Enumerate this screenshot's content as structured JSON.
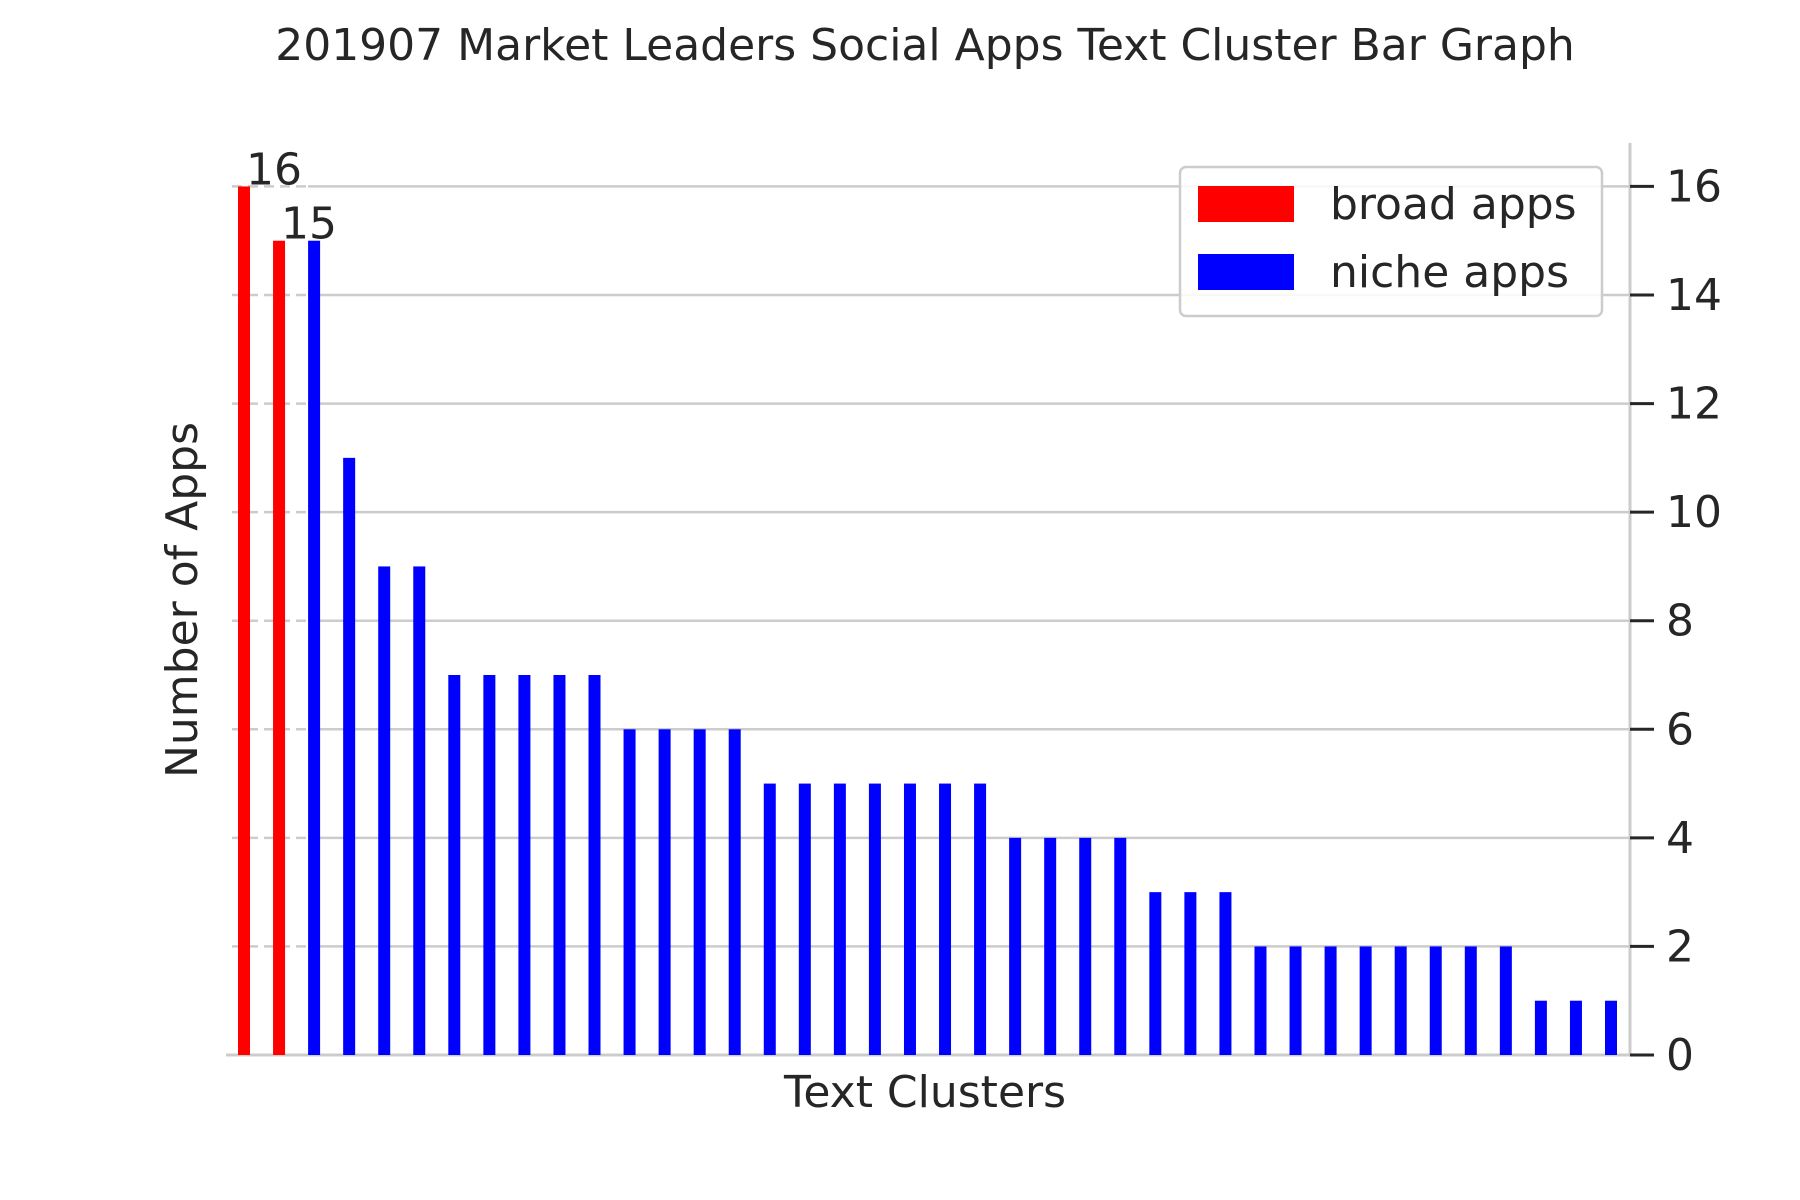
{
  "chart_data": {
    "type": "bar",
    "title": "201907 Market Leaders Social Apps Text Cluster Bar Graph",
    "xlabel": "Text Clusters",
    "ylabel": "Number of Apps",
    "ylim": [
      0,
      16.8
    ],
    "yticks": [
      0,
      2,
      4,
      6,
      8,
      10,
      12,
      14,
      16
    ],
    "grid": true,
    "y_axis_side": "right",
    "legend": {
      "placement": "top-right",
      "entries": [
        {
          "label": "broad apps",
          "color": "#ff0000"
        },
        {
          "label": "niche apps",
          "color": "#0000ff"
        }
      ]
    },
    "bars": [
      {
        "value": 16,
        "group": "broad apps",
        "label": "16"
      },
      {
        "value": 15,
        "group": "broad apps",
        "label": "15"
      },
      {
        "value": 15,
        "group": "niche apps"
      },
      {
        "value": 11,
        "group": "niche apps"
      },
      {
        "value": 9,
        "group": "niche apps"
      },
      {
        "value": 9,
        "group": "niche apps"
      },
      {
        "value": 7,
        "group": "niche apps"
      },
      {
        "value": 7,
        "group": "niche apps"
      },
      {
        "value": 7,
        "group": "niche apps"
      },
      {
        "value": 7,
        "group": "niche apps"
      },
      {
        "value": 7,
        "group": "niche apps"
      },
      {
        "value": 6,
        "group": "niche apps"
      },
      {
        "value": 6,
        "group": "niche apps"
      },
      {
        "value": 6,
        "group": "niche apps"
      },
      {
        "value": 6,
        "group": "niche apps"
      },
      {
        "value": 5,
        "group": "niche apps"
      },
      {
        "value": 5,
        "group": "niche apps"
      },
      {
        "value": 5,
        "group": "niche apps"
      },
      {
        "value": 5,
        "group": "niche apps"
      },
      {
        "value": 5,
        "group": "niche apps"
      },
      {
        "value": 5,
        "group": "niche apps"
      },
      {
        "value": 5,
        "group": "niche apps"
      },
      {
        "value": 4,
        "group": "niche apps"
      },
      {
        "value": 4,
        "group": "niche apps"
      },
      {
        "value": 4,
        "group": "niche apps"
      },
      {
        "value": 4,
        "group": "niche apps"
      },
      {
        "value": 3,
        "group": "niche apps"
      },
      {
        "value": 3,
        "group": "niche apps"
      },
      {
        "value": 3,
        "group": "niche apps"
      },
      {
        "value": 2,
        "group": "niche apps"
      },
      {
        "value": 2,
        "group": "niche apps"
      },
      {
        "value": 2,
        "group": "niche apps"
      },
      {
        "value": 2,
        "group": "niche apps"
      },
      {
        "value": 2,
        "group": "niche apps"
      },
      {
        "value": 2,
        "group": "niche apps"
      },
      {
        "value": 2,
        "group": "niche apps"
      },
      {
        "value": 2,
        "group": "niche apps"
      },
      {
        "value": 1,
        "group": "niche apps"
      },
      {
        "value": 1,
        "group": "niche apps"
      },
      {
        "value": 1,
        "group": "niche apps"
      }
    ]
  }
}
